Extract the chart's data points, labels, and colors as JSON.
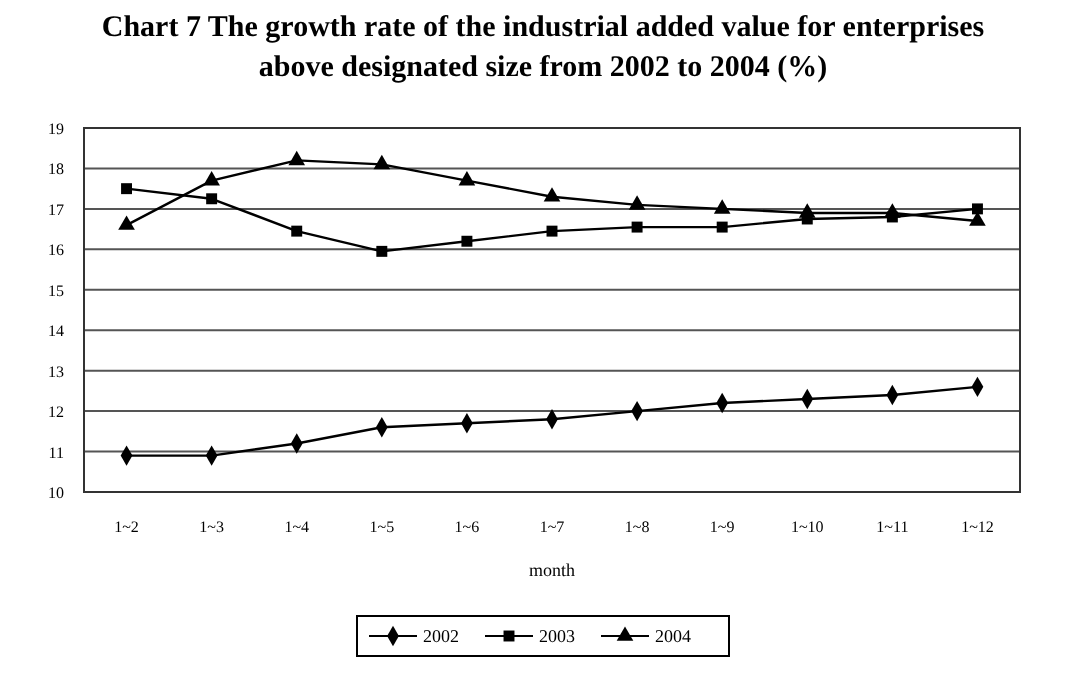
{
  "chart_data": {
    "type": "line",
    "title": "Chart 7 The growth rate of the industrial added value for enterprises above designated size from 2002 to 2004 (%)",
    "xlabel": "month",
    "categories": [
      "1~2",
      "1~3",
      "1~4",
      "1~5",
      "1~6",
      "1~7",
      "1~8",
      "1~9",
      "1~10",
      "1~11",
      "1~12"
    ],
    "series": [
      {
        "name": "2002",
        "color": "#000000",
        "marker": "diamond",
        "values": [
          10.9,
          10.9,
          11.2,
          11.6,
          11.7,
          11.8,
          12.0,
          12.2,
          12.3,
          12.4,
          12.6
        ]
      },
      {
        "name": "2003",
        "color": "#000000",
        "marker": "square",
        "values": [
          17.5,
          17.25,
          16.45,
          15.95,
          16.2,
          16.45,
          16.55,
          16.55,
          16.75,
          16.8,
          17.0
        ]
      },
      {
        "name": "2004",
        "color": "#000000",
        "marker": "triangle",
        "values": [
          16.6,
          17.7,
          18.2,
          18.1,
          17.7,
          17.3,
          17.1,
          17.0,
          16.9,
          16.9,
          16.7
        ]
      }
    ],
    "ylim": [
      10,
      19
    ],
    "yticks": [
      10,
      11,
      12,
      13,
      14,
      15,
      16,
      17,
      18,
      19
    ],
    "grid": "y",
    "legend": "bottom",
    "line_style": "solid"
  }
}
